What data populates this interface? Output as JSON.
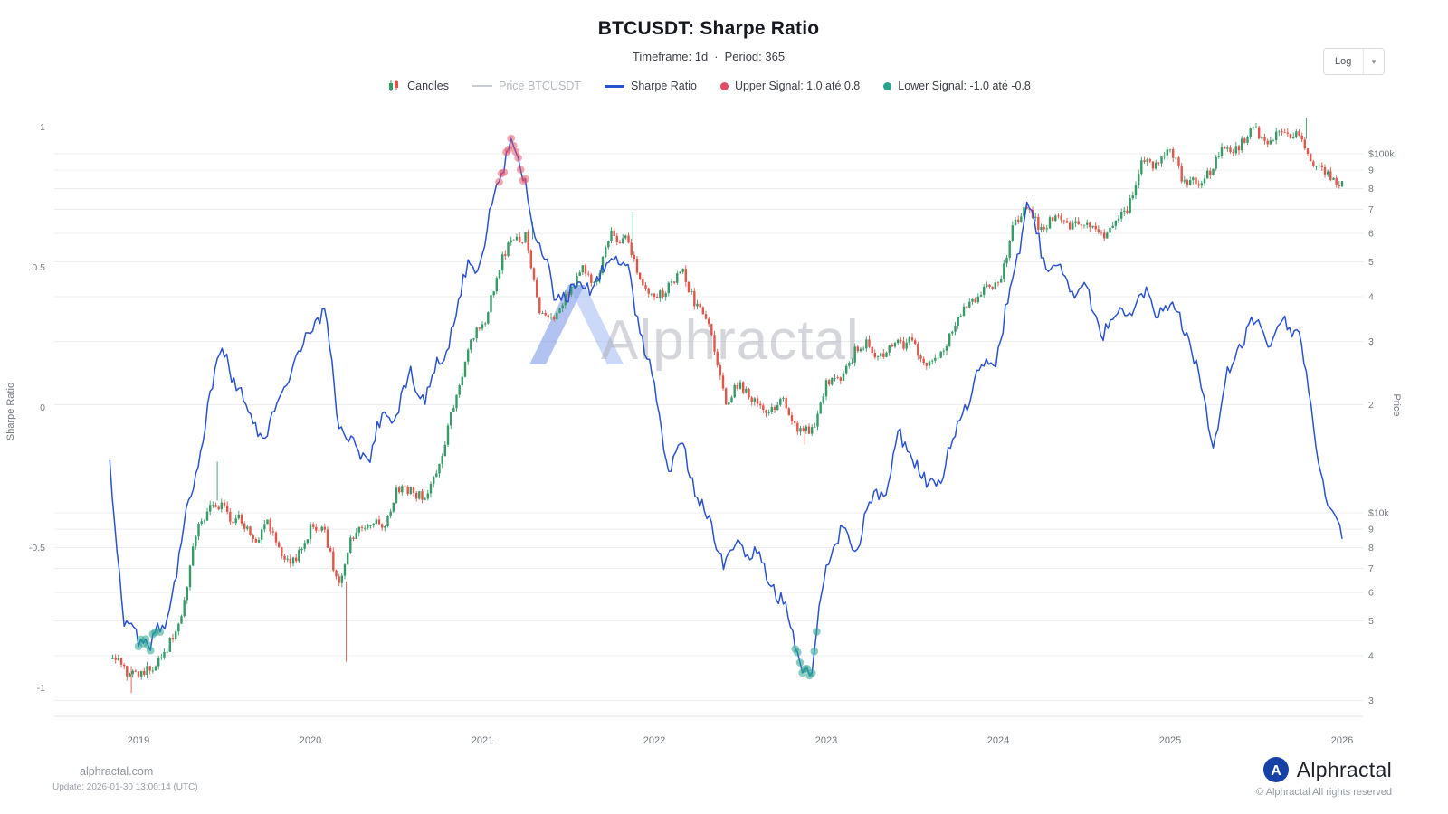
{
  "header": {
    "title": "BTCUSDT: Sharpe Ratio",
    "subtitle": {
      "timeframe": "Timeframe: 1d",
      "dot": "·",
      "period": "Period: 365"
    }
  },
  "toolbar": {
    "scale_label": "Log",
    "caret": "▾"
  },
  "legend": {
    "items": [
      {
        "label": "Candles"
      },
      {
        "label": "Price BTCUSDT",
        "disabled": true
      },
      {
        "label": "Sharpe Ratio"
      },
      {
        "label": "Upper Signal: 1.0 até 0.8"
      },
      {
        "label": "Lower Signal: -1.0 até -0.8"
      }
    ]
  },
  "axes": {
    "left_title": "Sharpe Ratio",
    "right_title": "Price",
    "left_ticks": [
      {
        "label": "1",
        "value": 1
      },
      {
        "label": "0.5",
        "value": 0.5
      },
      {
        "label": "0",
        "value": 0
      },
      {
        "label": "-0.5",
        "value": -0.5
      },
      {
        "label": "-1",
        "value": -1
      }
    ],
    "right_ticks": [
      {
        "label": "$100k",
        "value": 100000
      },
      {
        "label": "9",
        "value": 90000
      },
      {
        "label": "8",
        "value": 80000
      },
      {
        "label": "7",
        "value": 70000
      },
      {
        "label": "6",
        "value": 60000
      },
      {
        "label": "5",
        "value": 50000
      },
      {
        "label": "4",
        "value": 40000
      },
      {
        "label": "3",
        "value": 30000
      },
      {
        "label": "2",
        "value": 20000
      },
      {
        "label": "$10k",
        "value": 10000
      },
      {
        "label": "9",
        "value": 9000
      },
      {
        "label": "8",
        "value": 8000
      },
      {
        "label": "7",
        "value": 7000
      },
      {
        "label": "6",
        "value": 6000
      },
      {
        "label": "5",
        "value": 5000
      },
      {
        "label": "4",
        "value": 4000
      },
      {
        "label": "3",
        "value": 3000
      }
    ],
    "x_ticks": [
      {
        "label": "2019",
        "year": 2019
      },
      {
        "label": "2020",
        "year": 2020
      },
      {
        "label": "2021",
        "year": 2021
      },
      {
        "label": "2022",
        "year": 2022
      },
      {
        "label": "2023",
        "year": 2023
      },
      {
        "label": "2024",
        "year": 2024
      },
      {
        "label": "2025",
        "year": 2025
      },
      {
        "label": "2026",
        "year": 2026
      }
    ]
  },
  "watermark": {
    "text": "Alphractal"
  },
  "footer": {
    "site": "alphractal.com",
    "update": "Update: 2026-01-30 13:00:14 (UTC)",
    "brand": "Alphractal",
    "brand_initial": "A",
    "copyright": "© Alphractal All rights reserved"
  },
  "colors": {
    "sharpe_line": "#2a52cf",
    "candle_up": "#379b67",
    "candle_down": "#e2554a",
    "upper_signal": "#e14b64",
    "lower_signal": "#27a390",
    "grid": "#ededf0",
    "axis_text": "#74787f"
  },
  "chart_data": {
    "type": "line",
    "subtype": "candlestick+line combo",
    "title": "BTCUSDT: Sharpe Ratio",
    "timeframe": "1d",
    "period": 365,
    "x_start": "2018-11",
    "x_end": "2026-01",
    "x_step": "1 month (monthly close estimates read from daily chart)",
    "legend_position": "top",
    "grid": "horizontal",
    "ylim_left": [
      -1,
      1
    ],
    "ylim_right_log": [
      3000,
      130000
    ],
    "series": [
      {
        "name": "Price BTCUSDT",
        "style": "candles",
        "axis": "right",
        "scale": "log",
        "unit": "USD",
        "values": [
          4017,
          3743,
          3437,
          3816,
          4103,
          5269,
          8574,
          10818,
          10085,
          9630,
          8308,
          9199,
          7569,
          7193,
          9350,
          8599,
          6438,
          8658,
          9461,
          9137,
          11356,
          11655,
          10776,
          13797,
          19713,
          29022,
          33114,
          45137,
          58918,
          57750,
          37332,
          35040,
          41553,
          47166,
          43790,
          61318,
          57005,
          46216,
          38483,
          43193,
          45538,
          37630,
          31792,
          19942,
          23296,
          20049,
          19425,
          20490,
          17168,
          16547,
          23125,
          23141,
          28465,
          29233,
          27210,
          30472,
          29230,
          25932,
          26962,
          34656,
          37718,
          42265,
          42580,
          61179,
          71333,
          60637,
          67491,
          62678,
          64619,
          58970,
          63330,
          70215,
          96449,
          93430,
          102400,
          84350,
          82550,
          94200,
          104600,
          107100,
          115800,
          108200,
          114100,
          109900,
          91400,
          87200,
          84000
        ]
      },
      {
        "name": "Sharpe Ratio",
        "style": "line",
        "axis": "left",
        "color": "#2a52cf",
        "values": [
          -0.22,
          -0.75,
          -0.85,
          -0.82,
          -0.78,
          -0.45,
          -0.25,
          0.05,
          0.2,
          0.05,
          -0.05,
          -0.1,
          0.05,
          0.15,
          0.3,
          0.33,
          -0.05,
          -0.15,
          -0.18,
          -0.05,
          0,
          0.1,
          0.05,
          0.15,
          0.3,
          0.5,
          0.55,
          0.8,
          0.95,
          0.8,
          0.55,
          0.42,
          0.38,
          0.45,
          0.42,
          0.55,
          0.5,
          0.3,
          0.05,
          -0.2,
          -0.15,
          -0.3,
          -0.45,
          -0.55,
          -0.5,
          -0.52,
          -0.62,
          -0.68,
          -0.88,
          -0.95,
          -0.55,
          -0.45,
          -0.5,
          -0.35,
          -0.3,
          -0.12,
          -0.15,
          -0.3,
          -0.25,
          -0.1,
          0.05,
          0.15,
          0.2,
          0.45,
          0.72,
          0.55,
          0.5,
          0.4,
          0.42,
          0.28,
          0.3,
          0.32,
          0.4,
          0.35,
          0.35,
          0.3,
          0.1,
          -0.15,
          0.1,
          0.25,
          0.3,
          0.22,
          0.3,
          0.28,
          -0.1,
          -0.35,
          -0.47
        ]
      }
    ],
    "signals": {
      "upper": {
        "label": "Upper Signal: 1.0 até 0.8",
        "range": [
          0.8,
          1.0
        ],
        "color": "#e14b64",
        "active_period": "2021-02 to 2021-04"
      },
      "lower": {
        "label": "Lower Signal: -1.0 até -0.8",
        "range": [
          -1.0,
          -0.8
        ],
        "color": "#27a390",
        "active_periods": [
          "2018-12 to 2019-03",
          "2022-11 to 2022-12"
        ]
      }
    },
    "notable_extremes": {
      "lows": [
        {
          "month": "2018-12",
          "price": 3150
        },
        {
          "month": "2020-03",
          "price": 3850
        },
        {
          "month": "2022-11",
          "price": 15480
        }
      ],
      "highs": [
        {
          "month": "2019-06",
          "price": 13880
        },
        {
          "month": "2021-04",
          "price": 64850
        },
        {
          "month": "2021-11",
          "price": 69000
        },
        {
          "month": "2024-03",
          "price": 73780
        },
        {
          "month": "2025-10",
          "price": 126100
        }
      ]
    }
  }
}
